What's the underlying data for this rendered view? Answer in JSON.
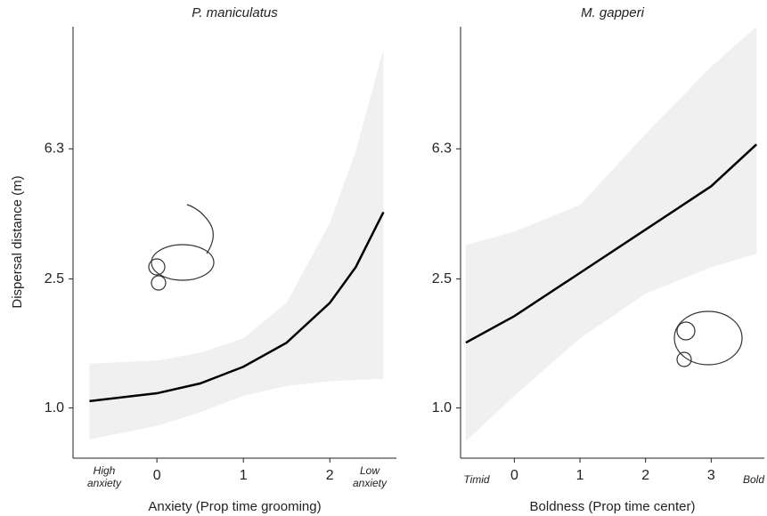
{
  "chart_data": [
    {
      "type": "line",
      "title": "P. maniculatus",
      "xlabel": "Anxiety (Prop time grooming)",
      "ylabel": "Dispersal distance (m)",
      "x_end_labels": [
        [
          "High",
          "anxiety"
        ],
        [
          "Low",
          "anxiety"
        ]
      ],
      "log_y": true,
      "xlim": [
        -0.97,
        2.77
      ],
      "ylim": [
        0.7,
        15
      ],
      "xticks": [
        0,
        1,
        2
      ],
      "yticks": [
        {
          "value": 1.0,
          "label": "1.0"
        },
        2.5,
        6.3
      ],
      "x": [
        -0.78,
        0,
        0.5,
        1,
        1.5,
        2,
        2.3,
        2.62
      ],
      "values": [
        1.05,
        1.11,
        1.19,
        1.34,
        1.59,
        2.11,
        2.72,
        4.02
      ],
      "band_lower": [
        0.8,
        0.88,
        0.97,
        1.09,
        1.17,
        1.21,
        1.22,
        1.23
      ],
      "band_upper": [
        1.37,
        1.4,
        1.48,
        1.64,
        2.11,
        3.72,
        6.2,
        12.8
      ],
      "color": "#000000",
      "band_color": "#f0f0f0"
    },
    {
      "type": "line",
      "title": "M. gapperi",
      "xlabel": "Boldness (Prop time center)",
      "x_end_labels": [
        [
          "Timid"
        ],
        [
          "Bold"
        ]
      ],
      "log_y": true,
      "xlim": [
        -0.82,
        3.81
      ],
      "ylim": [
        0.7,
        15
      ],
      "xticks": [
        0,
        1,
        2,
        3
      ],
      "yticks": [
        {
          "value": 1.0,
          "label": "1.0"
        },
        2.5,
        6.3
      ],
      "x": [
        -0.74,
        0,
        1,
        2,
        3,
        3.69
      ],
      "values": [
        1.59,
        1.92,
        2.61,
        3.55,
        4.83,
        6.5
      ],
      "band_lower": [
        0.79,
        1.09,
        1.64,
        2.25,
        2.72,
        2.99
      ],
      "band_upper": [
        3.18,
        3.5,
        4.23,
        7.0,
        11.3,
        15
      ],
      "color": "#000000",
      "band_color": "#f0f0f0"
    }
  ]
}
